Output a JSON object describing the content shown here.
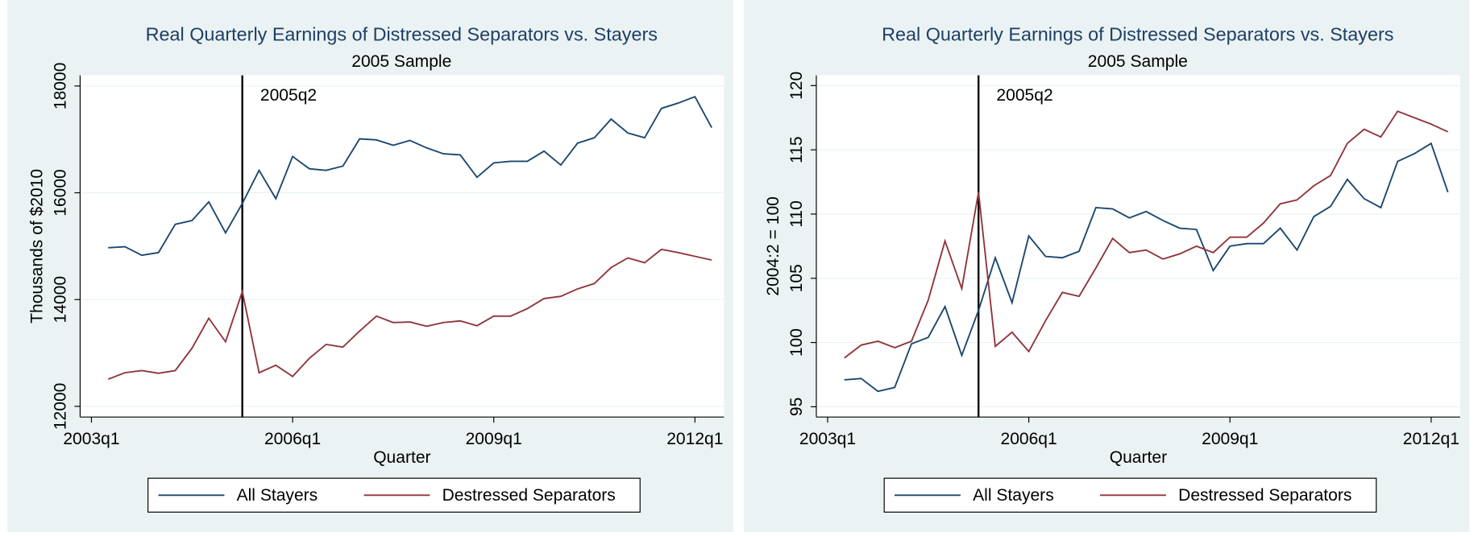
{
  "chart_data": [
    {
      "type": "line",
      "title": "Real Quarterly Earnings of Distressed Separators vs. Stayers",
      "subtitle": "2005 Sample",
      "x_label": "Quarter",
      "y_label": "Thousands of $2010",
      "x": [
        "2003q2",
        "2003q3",
        "2003q4",
        "2004q1",
        "2004q2",
        "2004q3",
        "2004q4",
        "2005q1",
        "2005q2",
        "2005q3",
        "2005q4",
        "2006q1",
        "2006q2",
        "2006q3",
        "2006q4",
        "2007q1",
        "2007q2",
        "2007q3",
        "2007q4",
        "2008q1",
        "2008q2",
        "2008q3",
        "2008q4",
        "2009q1",
        "2009q2",
        "2009q3",
        "2009q4",
        "2010q1",
        "2010q2",
        "2010q3",
        "2010q4",
        "2011q1",
        "2011q2",
        "2011q3",
        "2011q4",
        "2012q1",
        "2012q2"
      ],
      "series": [
        {
          "name": "All Stayers",
          "color": "#1a476f",
          "values": [
            14970,
            14990,
            14830,
            14880,
            15410,
            15480,
            15830,
            15250,
            15800,
            16420,
            15890,
            16680,
            16450,
            16420,
            16500,
            17010,
            16990,
            16890,
            16980,
            16840,
            16730,
            16710,
            16290,
            16560,
            16590,
            16590,
            16780,
            16520,
            16930,
            17030,
            17380,
            17120,
            17030,
            17580,
            17680,
            17800,
            17220
          ]
        },
        {
          "name": "Destressed Separators",
          "color": "#90353b",
          "values": [
            12510,
            12630,
            12670,
            12620,
            12670,
            13090,
            13650,
            13210,
            14150,
            12630,
            12770,
            12560,
            12900,
            13160,
            13110,
            13410,
            13690,
            13570,
            13580,
            13500,
            13570,
            13600,
            13510,
            13690,
            13690,
            13830,
            14020,
            14060,
            14200,
            14300,
            14600,
            14780,
            14690,
            14940,
            14880,
            14810,
            14740
          ]
        }
      ],
      "xlim": [
        "2003q1",
        "2012q2"
      ],
      "xticks": [
        "2003q1",
        "2006q1",
        "2009q1",
        "2012q1"
      ],
      "ylim": [
        11800,
        18200
      ],
      "yticks": [
        12000,
        14000,
        16000,
        18000
      ],
      "grid": true,
      "annotations": [
        {
          "x": "2005q2",
          "label": "2005q2"
        }
      ],
      "legend": "bottom"
    },
    {
      "type": "line",
      "title": "Real Quarterly Earnings of Distressed Separators vs. Stayers",
      "subtitle": "2005 Sample",
      "x_label": "Quarter",
      "y_label": "2004:2 = 100",
      "x": [
        "2003q2",
        "2003q3",
        "2003q4",
        "2004q1",
        "2004q2",
        "2004q3",
        "2004q4",
        "2005q1",
        "2005q2",
        "2005q3",
        "2005q4",
        "2006q1",
        "2006q2",
        "2006q3",
        "2006q4",
        "2007q1",
        "2007q2",
        "2007q3",
        "2007q4",
        "2008q1",
        "2008q2",
        "2008q3",
        "2008q4",
        "2009q1",
        "2009q2",
        "2009q3",
        "2009q4",
        "2010q1",
        "2010q2",
        "2010q3",
        "2010q4",
        "2011q1",
        "2011q2",
        "2011q3",
        "2011q4",
        "2012q1",
        "2012q2"
      ],
      "series": [
        {
          "name": "All Stayers",
          "color": "#1a476f",
          "values": [
            97.1,
            97.2,
            96.2,
            96.5,
            99.9,
            100.4,
            102.8,
            99.0,
            102.5,
            106.6,
            103.1,
            108.3,
            106.7,
            106.6,
            107.1,
            110.5,
            110.4,
            109.7,
            110.2,
            109.5,
            108.9,
            108.8,
            105.6,
            107.5,
            107.7,
            107.7,
            108.9,
            107.2,
            109.8,
            110.6,
            112.7,
            111.2,
            110.5,
            114.1,
            114.7,
            115.5,
            111.7
          ]
        },
        {
          "name": "Destressed Separators",
          "color": "#90353b",
          "values": [
            98.8,
            99.8,
            100.1,
            99.6,
            100.1,
            103.3,
            107.9,
            104.2,
            111.7,
            99.7,
            100.8,
            99.3,
            101.7,
            103.9,
            103.6,
            105.8,
            108.1,
            107.0,
            107.2,
            106.5,
            106.9,
            107.5,
            107.0,
            108.2,
            108.2,
            109.3,
            110.8,
            111.1,
            112.2,
            113.0,
            115.5,
            116.6,
            116.0,
            118.0,
            117.5,
            117.0,
            116.4
          ]
        }
      ],
      "xlim": [
        "2003q1",
        "2012q2"
      ],
      "xticks": [
        "2003q1",
        "2006q1",
        "2009q1",
        "2012q1"
      ],
      "ylim": [
        94.2,
        120.8
      ],
      "yticks": [
        95,
        100,
        105,
        110,
        115,
        120
      ],
      "grid": true,
      "annotations": [
        {
          "x": "2005q2",
          "label": "2005q2"
        }
      ],
      "legend": "bottom"
    }
  ]
}
